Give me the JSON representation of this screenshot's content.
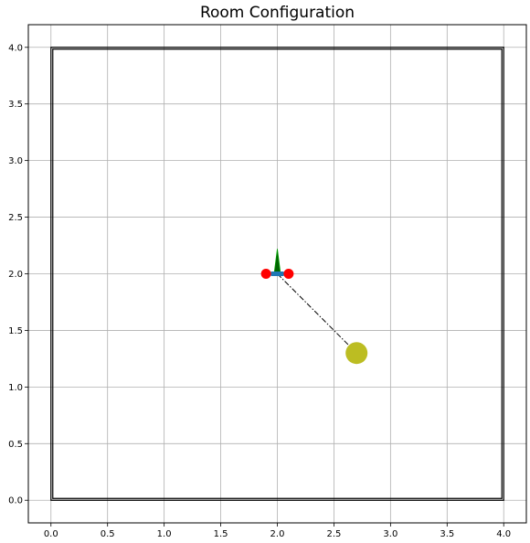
{
  "chart_data": {
    "type": "scatter",
    "title": "Room Configuration",
    "xlabel": "",
    "ylabel": "",
    "xlim": [
      -0.2,
      4.2
    ],
    "ylim": [
      -0.2,
      4.2
    ],
    "grid": true,
    "xticks": [
      0.0,
      0.5,
      1.0,
      1.5,
      2.0,
      2.5,
      3.0,
      3.5,
      4.0
    ],
    "yticks": [
      0.0,
      0.5,
      1.0,
      1.5,
      2.0,
      2.5,
      3.0,
      3.5,
      4.0
    ],
    "xtick_labels": [
      "0.0",
      "0.5",
      "1.0",
      "1.5",
      "2.0",
      "2.5",
      "3.0",
      "3.5",
      "4.0"
    ],
    "ytick_labels": [
      "0.0",
      "0.5",
      "1.0",
      "1.5",
      "2.0",
      "2.5",
      "3.0",
      "3.5",
      "4.0"
    ],
    "room": {
      "corners": [
        [
          0,
          0
        ],
        [
          4,
          0
        ],
        [
          4,
          4
        ],
        [
          0,
          4
        ]
      ],
      "color": "#000000"
    },
    "microphones": {
      "points": [
        [
          1.9,
          2.0
        ],
        [
          2.1,
          2.0
        ]
      ],
      "color": "#ff0000"
    },
    "array_center": {
      "x": 2.0,
      "y": 2.0,
      "color": "#1f77b4"
    },
    "orientation_arrow": {
      "from": [
        2.0,
        2.0
      ],
      "to": [
        2.0,
        2.22
      ],
      "color": "#006400"
    },
    "source": {
      "x": 2.7,
      "y": 1.3,
      "color": "#bcbd22"
    },
    "doa_line": {
      "from": [
        2.0,
        2.0
      ],
      "to": [
        2.7,
        1.3
      ],
      "color": "#000000",
      "style": "dash-dot"
    },
    "grid_color": "#b0b0b0"
  }
}
